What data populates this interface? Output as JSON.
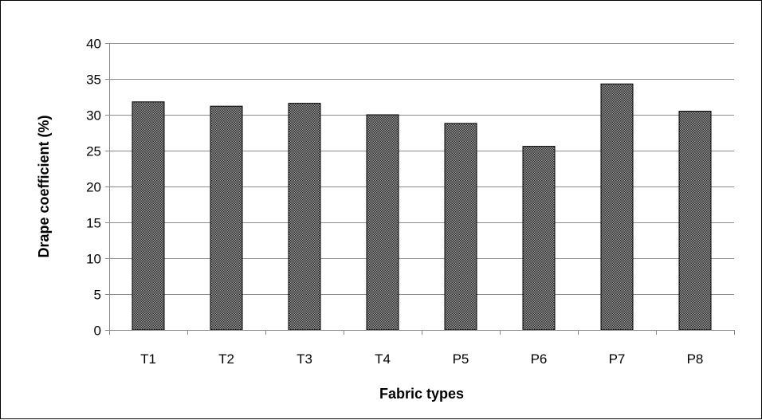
{
  "chart_data": {
    "type": "bar",
    "categories": [
      "T1",
      "T2",
      "T3",
      "T4",
      "P5",
      "P6",
      "P7",
      "P8"
    ],
    "values": [
      31.8,
      31.2,
      31.6,
      30.0,
      28.8,
      25.6,
      34.3,
      30.5
    ],
    "xlabel": "Fabric types",
    "ylabel": "Drape coefficient (%)",
    "ylim": [
      0,
      40
    ],
    "yticks": [
      0,
      5,
      10,
      15,
      20,
      25,
      30,
      35,
      40
    ],
    "grid": true,
    "legend": "none",
    "colors": {
      "bar_fill": "#808080",
      "bar_pattern_dot": "#2b2b2b",
      "bar_outline": "#000000",
      "gridline": "#8c8c8c",
      "axis": "#8c8c8c",
      "text": "#000000"
    }
  }
}
